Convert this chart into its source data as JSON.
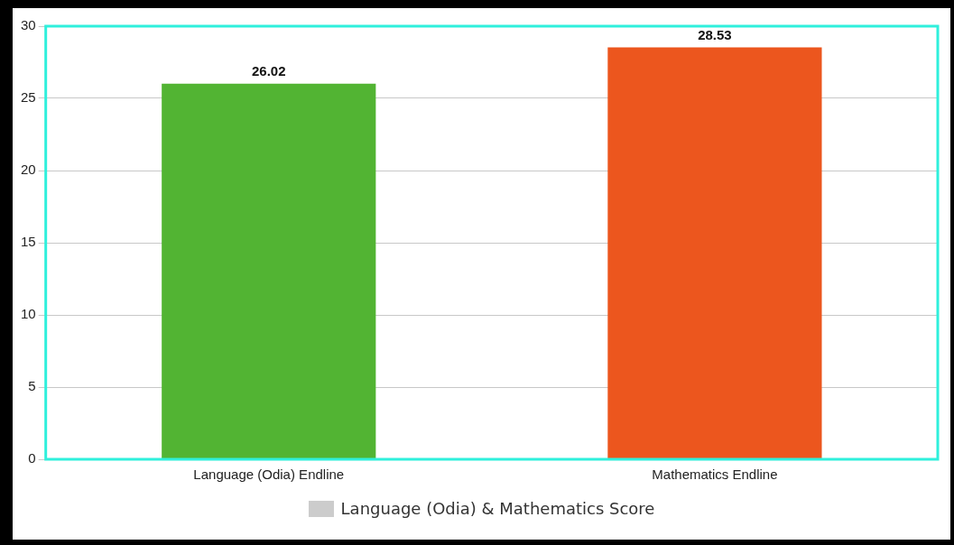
{
  "chart_data": {
    "type": "bar",
    "categories": [
      "Language (Odia) Endline",
      "Mathematics Endline"
    ],
    "series": [
      {
        "name": "Language (Odia) & Mathematics Score",
        "color": "#cccccc",
        "colors": [
          "#52b433",
          "#ec561e"
        ],
        "values": [
          26.02,
          28.53
        ]
      }
    ],
    "ylim": [
      0,
      30
    ],
    "yticks": [
      0,
      5,
      10,
      15,
      20,
      25,
      30
    ],
    "grid": "y",
    "legend": "bottom",
    "data_labels": true
  }
}
